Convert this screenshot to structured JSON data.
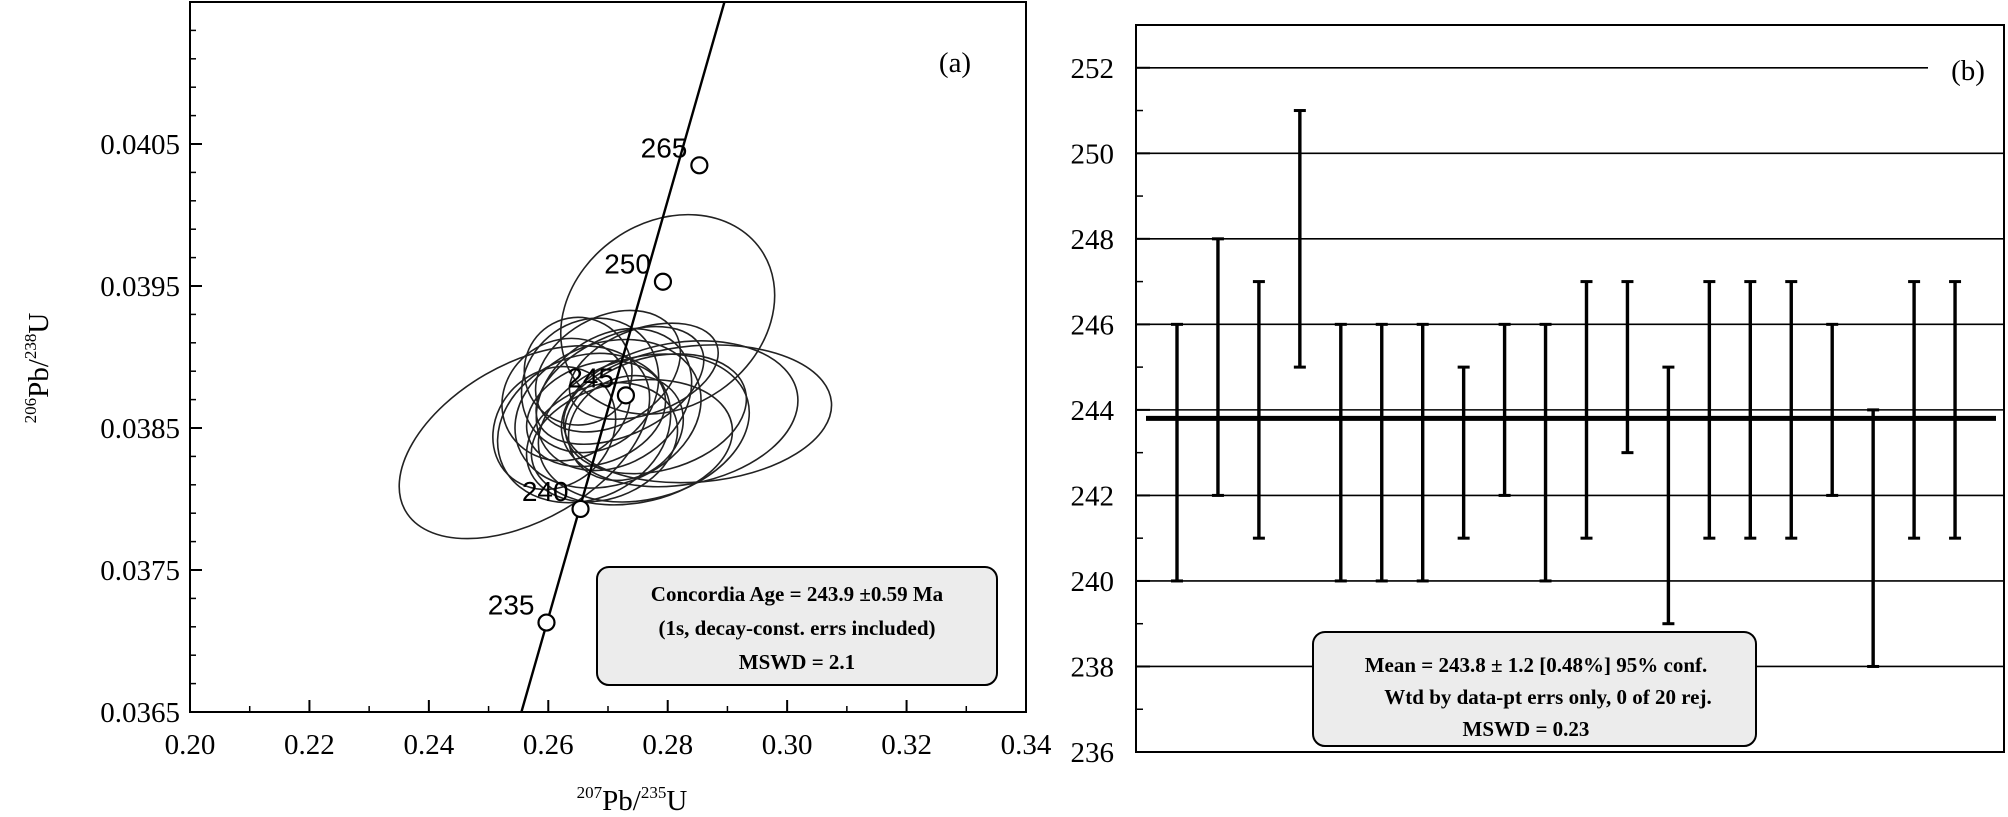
{
  "chart_data": [
    {
      "type": "scatter",
      "panel_label": "(a)",
      "xlabel": {
        "sup1": "207",
        "base1": "Pb/",
        "sup2": "235",
        "base2": "U"
      },
      "ylabel": {
        "sup1": "206",
        "base1": "Pb/",
        "sup2": "238",
        "base2": "U"
      },
      "xlim": [
        0.2,
        0.34
      ],
      "ylim": [
        0.0365,
        0.0415
      ],
      "x_ticks": [
        "0.20",
        "0.22",
        "0.24",
        "0.26",
        "0.28",
        "0.30",
        "0.32",
        "0.34"
      ],
      "x_tick_values": [
        0.2,
        0.22,
        0.24,
        0.26,
        0.28,
        0.3,
        0.32,
        0.34
      ],
      "y_ticks": [
        "0.0365",
        "0.0375",
        "0.0385",
        "0.0395",
        "0.0405"
      ],
      "y_tick_values": [
        0.0365,
        0.0375,
        0.0385,
        0.0395,
        0.0405
      ],
      "concordia_points": [
        {
          "label": "235",
          "x": 0.2597,
          "y": 0.03713
        },
        {
          "label": "240",
          "x": 0.2654,
          "y": 0.03793
        },
        {
          "label": "245",
          "x": 0.273,
          "y": 0.03873
        },
        {
          "label": "250",
          "x": 0.2792,
          "y": 0.03953
        },
        {
          "label": "265",
          "x": 0.2853,
          "y": 0.04035
        }
      ],
      "concordia_line": {
        "x1": 0.2555,
        "y1": 0.0365,
        "x2": 0.2895,
        "y2": 0.0415
      },
      "ellipses": [
        {
          "cx": 0.256,
          "cy": 0.0384,
          "rx": 0.023,
          "ry": 0.00055,
          "angle": -30
        },
        {
          "cx": 0.28,
          "cy": 0.0393,
          "rx": 0.019,
          "ry": 0.00065,
          "angle": -35
        },
        {
          "cx": 0.285,
          "cy": 0.0386,
          "rx": 0.0225,
          "ry": 0.00048,
          "angle": -5
        },
        {
          "cx": 0.282,
          "cy": 0.0386,
          "rx": 0.02,
          "ry": 0.0005,
          "angle": -10
        },
        {
          "cx": 0.276,
          "cy": 0.0385,
          "rx": 0.018,
          "ry": 0.0005,
          "angle": -15
        },
        {
          "cx": 0.27,
          "cy": 0.0386,
          "rx": 0.016,
          "ry": 0.0005,
          "angle": -20
        },
        {
          "cx": 0.266,
          "cy": 0.0385,
          "rx": 0.015,
          "ry": 0.0005,
          "angle": -25
        },
        {
          "cx": 0.271,
          "cy": 0.0387,
          "rx": 0.014,
          "ry": 0.00045,
          "angle": -35
        },
        {
          "cx": 0.267,
          "cy": 0.0388,
          "rx": 0.012,
          "ry": 0.00045,
          "angle": -40
        },
        {
          "cx": 0.269,
          "cy": 0.0384,
          "rx": 0.013,
          "ry": 0.0004,
          "angle": -20
        },
        {
          "cx": 0.274,
          "cy": 0.0384,
          "rx": 0.017,
          "ry": 0.00043,
          "angle": -10
        },
        {
          "cx": 0.278,
          "cy": 0.0386,
          "rx": 0.0155,
          "ry": 0.0004,
          "angle": -15
        },
        {
          "cx": 0.263,
          "cy": 0.0387,
          "rx": 0.011,
          "ry": 0.00042,
          "angle": -30
        },
        {
          "cx": 0.27,
          "cy": 0.0389,
          "rx": 0.013,
          "ry": 0.00038,
          "angle": -30
        },
        {
          "cx": 0.265,
          "cy": 0.0389,
          "rx": 0.009,
          "ry": 0.00038,
          "angle": -50
        },
        {
          "cx": 0.272,
          "cy": 0.0388,
          "rx": 0.015,
          "ry": 0.00035,
          "angle": -25
        },
        {
          "cx": 0.268,
          "cy": 0.0386,
          "rx": 0.012,
          "ry": 0.00035,
          "angle": -20
        },
        {
          "cx": 0.261,
          "cy": 0.0385,
          "rx": 0.011,
          "ry": 0.0004,
          "angle": -45
        },
        {
          "cx": 0.276,
          "cy": 0.0389,
          "rx": 0.013,
          "ry": 0.0003,
          "angle": -20
        },
        {
          "cx": 0.273,
          "cy": 0.0385,
          "rx": 0.01,
          "ry": 0.00035,
          "angle": -30
        }
      ],
      "annotation": [
        "Concordia Age = 243.9 ±0.59 Ma",
        "(1s, decay-const. errs included)",
        "MSWD  = 2.1"
      ]
    },
    {
      "type": "errorbar",
      "panel_label": "(b)",
      "ylim": [
        236,
        253
      ],
      "y_ticks": [
        "236",
        "238",
        "240",
        "242",
        "244",
        "246",
        "248",
        "250",
        "252"
      ],
      "y_tick_values": [
        236,
        238,
        240,
        242,
        244,
        246,
        248,
        250,
        252
      ],
      "grid": "horizontal",
      "mean": 243.8,
      "bars": [
        {
          "low": 240,
          "high": 246
        },
        {
          "low": 242,
          "high": 248
        },
        {
          "low": 241,
          "high": 247
        },
        {
          "low": 245,
          "high": 251
        },
        {
          "low": 240,
          "high": 246
        },
        {
          "low": 240,
          "high": 246
        },
        {
          "low": 240,
          "high": 246
        },
        {
          "low": 241,
          "high": 245
        },
        {
          "low": 242,
          "high": 246
        },
        {
          "low": 240,
          "high": 246
        },
        {
          "low": 241,
          "high": 247
        },
        {
          "low": 243,
          "high": 247
        },
        {
          "low": 239,
          "high": 245
        },
        {
          "low": 241,
          "high": 247
        },
        {
          "low": 241,
          "high": 247
        },
        {
          "low": 241,
          "high": 247
        },
        {
          "low": 242,
          "high": 246
        },
        {
          "low": 238,
          "high": 244
        },
        {
          "low": 241,
          "high": 247
        },
        {
          "low": 241,
          "high": 247
        }
      ],
      "annotation": [
        "Mean = 243.8 ± 1.2  [0.48%]  95% conf.",
        "Wtd by data-pt errs only, 0 of 20 rej.",
        "MSWD = 0.23"
      ]
    }
  ]
}
